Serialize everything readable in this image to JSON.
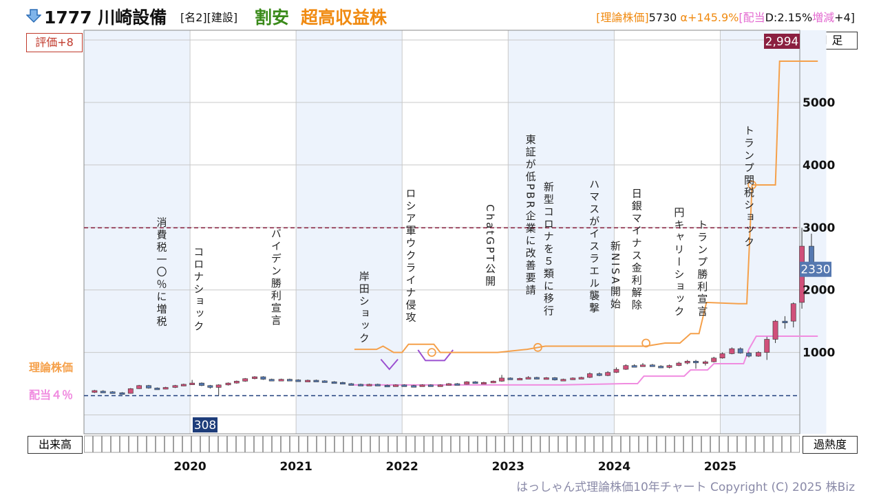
{
  "header": {
    "ticker": "1777 川崎設備",
    "tags": "[名2][建設]",
    "valuation": "割安",
    "growth": "超高収益株",
    "info_prefix": "[理論株価]",
    "theoretical_price": "5730",
    "alpha": "α+145.9%",
    "dividend_prefix": "[配当",
    "dividend": "D:2.15%",
    "change_label": "増減",
    "change_value": "+4]",
    "direction_icon": "down-arrow-icon"
  },
  "labels": {
    "rating": "評価+8",
    "period": "月 足",
    "volume": "出来高",
    "overheat": "過熱度",
    "theory_line": "理論株価",
    "dividend_line": "配当４％"
  },
  "footer": "はっしゃん式理論株価10年チャート Copyright (C) 2025 株Biz",
  "colors": {
    "up_candle": "#d0507a",
    "down_candle": "#5578b0",
    "theory_line": "#f5a04a",
    "dividend_line": "#f08ce0",
    "purple": "#9b4fd0",
    "high_tag": "#8b2040",
    "low_tag": "#1e3d7a",
    "current_tag": "#5578b0",
    "shade": "#edf3fc"
  },
  "chart_data": {
    "type": "candlestick",
    "period": "monthly",
    "ylim": [
      0,
      6000
    ],
    "yticks": [
      1000,
      2000,
      3000,
      4000,
      5000
    ],
    "ytick_labels": [
      "1000",
      "2000",
      "3000",
      "4000",
      "5000"
    ],
    "x_start": 2019.0,
    "x_end": 2025.75,
    "year_labels": [
      "2020",
      "2021",
      "2022",
      "2023",
      "2024",
      "2025"
    ],
    "year_positions": [
      2020,
      2021,
      2022,
      2023,
      2024,
      2025
    ],
    "high_price": 2994,
    "high_label": "2,994",
    "low_price": 308,
    "low_label": "308",
    "current_price": 2330,
    "current_label": "2330",
    "candles": [
      {
        "t": 2019.1,
        "o": 360,
        "c": 390,
        "h": 400,
        "l": 350
      },
      {
        "t": 2019.18,
        "o": 380,
        "c": 370,
        "h": 395,
        "l": 360
      },
      {
        "t": 2019.27,
        "o": 370,
        "c": 355,
        "h": 380,
        "l": 345
      },
      {
        "t": 2019.36,
        "o": 355,
        "c": 345,
        "h": 365,
        "l": 335
      },
      {
        "t": 2019.44,
        "o": 345,
        "c": 420,
        "h": 430,
        "l": 340
      },
      {
        "t": 2019.52,
        "o": 420,
        "c": 470,
        "h": 480,
        "l": 415
      },
      {
        "t": 2019.61,
        "o": 470,
        "c": 430,
        "h": 480,
        "l": 420
      },
      {
        "t": 2019.69,
        "o": 430,
        "c": 420,
        "h": 440,
        "l": 405
      },
      {
        "t": 2019.77,
        "o": 420,
        "c": 440,
        "h": 450,
        "l": 410
      },
      {
        "t": 2019.86,
        "o": 440,
        "c": 470,
        "h": 480,
        "l": 430
      },
      {
        "t": 2019.94,
        "o": 470,
        "c": 490,
        "h": 500,
        "l": 460
      },
      {
        "t": 2020.02,
        "o": 490,
        "c": 510,
        "h": 560,
        "l": 480
      },
      {
        "t": 2020.11,
        "o": 510,
        "c": 470,
        "h": 520,
        "l": 460
      },
      {
        "t": 2020.19,
        "o": 470,
        "c": 440,
        "h": 480,
        "l": 420
      },
      {
        "t": 2020.27,
        "o": 440,
        "c": 480,
        "h": 490,
        "l": 308
      },
      {
        "t": 2020.36,
        "o": 480,
        "c": 510,
        "h": 520,
        "l": 470
      },
      {
        "t": 2020.44,
        "o": 510,
        "c": 540,
        "h": 550,
        "l": 500
      },
      {
        "t": 2020.52,
        "o": 540,
        "c": 580,
        "h": 590,
        "l": 530
      },
      {
        "t": 2020.61,
        "o": 580,
        "c": 610,
        "h": 620,
        "l": 570
      },
      {
        "t": 2020.69,
        "o": 610,
        "c": 570,
        "h": 620,
        "l": 560
      },
      {
        "t": 2020.77,
        "o": 570,
        "c": 560,
        "h": 580,
        "l": 545
      },
      {
        "t": 2020.86,
        "o": 560,
        "c": 570,
        "h": 580,
        "l": 550
      },
      {
        "t": 2020.94,
        "o": 570,
        "c": 560,
        "h": 580,
        "l": 550
      },
      {
        "t": 2021.02,
        "o": 560,
        "c": 540,
        "h": 570,
        "l": 530
      },
      {
        "t": 2021.11,
        "o": 540,
        "c": 555,
        "h": 565,
        "l": 530
      },
      {
        "t": 2021.19,
        "o": 555,
        "c": 545,
        "h": 565,
        "l": 535
      },
      {
        "t": 2021.27,
        "o": 545,
        "c": 530,
        "h": 555,
        "l": 520
      },
      {
        "t": 2021.36,
        "o": 530,
        "c": 520,
        "h": 540,
        "l": 510
      },
      {
        "t": 2021.44,
        "o": 520,
        "c": 500,
        "h": 530,
        "l": 490
      },
      {
        "t": 2021.52,
        "o": 500,
        "c": 490,
        "h": 510,
        "l": 480
      },
      {
        "t": 2021.61,
        "o": 490,
        "c": 480,
        "h": 500,
        "l": 470
      },
      {
        "t": 2021.69,
        "o": 480,
        "c": 490,
        "h": 500,
        "l": 470
      },
      {
        "t": 2021.77,
        "o": 490,
        "c": 475,
        "h": 500,
        "l": 465
      },
      {
        "t": 2021.86,
        "o": 475,
        "c": 470,
        "h": 485,
        "l": 460
      },
      {
        "t": 2021.94,
        "o": 470,
        "c": 480,
        "h": 490,
        "l": 460
      },
      {
        "t": 2022.02,
        "o": 480,
        "c": 470,
        "h": 490,
        "l": 455
      },
      {
        "t": 2022.11,
        "o": 470,
        "c": 465,
        "h": 480,
        "l": 450
      },
      {
        "t": 2022.19,
        "o": 465,
        "c": 480,
        "h": 490,
        "l": 455
      },
      {
        "t": 2022.27,
        "o": 480,
        "c": 470,
        "h": 490,
        "l": 460
      },
      {
        "t": 2022.36,
        "o": 470,
        "c": 480,
        "h": 490,
        "l": 465
      },
      {
        "t": 2022.44,
        "o": 480,
        "c": 500,
        "h": 510,
        "l": 470
      },
      {
        "t": 2022.52,
        "o": 500,
        "c": 490,
        "h": 510,
        "l": 480
      },
      {
        "t": 2022.61,
        "o": 490,
        "c": 530,
        "h": 540,
        "l": 485
      },
      {
        "t": 2022.69,
        "o": 530,
        "c": 510,
        "h": 540,
        "l": 500
      },
      {
        "t": 2022.77,
        "o": 510,
        "c": 520,
        "h": 530,
        "l": 500
      },
      {
        "t": 2022.86,
        "o": 520,
        "c": 540,
        "h": 550,
        "l": 510
      },
      {
        "t": 2022.94,
        "o": 540,
        "c": 590,
        "h": 640,
        "l": 530
      },
      {
        "t": 2023.02,
        "o": 590,
        "c": 575,
        "h": 600,
        "l": 565
      },
      {
        "t": 2023.11,
        "o": 575,
        "c": 585,
        "h": 595,
        "l": 565
      },
      {
        "t": 2023.19,
        "o": 585,
        "c": 600,
        "h": 620,
        "l": 575
      },
      {
        "t": 2023.27,
        "o": 600,
        "c": 580,
        "h": 610,
        "l": 570
      },
      {
        "t": 2023.36,
        "o": 580,
        "c": 595,
        "h": 605,
        "l": 570
      },
      {
        "t": 2023.44,
        "o": 595,
        "c": 560,
        "h": 605,
        "l": 550
      },
      {
        "t": 2023.52,
        "o": 560,
        "c": 570,
        "h": 580,
        "l": 550
      },
      {
        "t": 2023.61,
        "o": 570,
        "c": 590,
        "h": 600,
        "l": 560
      },
      {
        "t": 2023.69,
        "o": 590,
        "c": 600,
        "h": 610,
        "l": 580
      },
      {
        "t": 2023.77,
        "o": 600,
        "c": 660,
        "h": 680,
        "l": 590
      },
      {
        "t": 2023.86,
        "o": 660,
        "c": 630,
        "h": 680,
        "l": 620
      },
      {
        "t": 2023.94,
        "o": 630,
        "c": 680,
        "h": 700,
        "l": 620
      },
      {
        "t": 2024.02,
        "o": 680,
        "c": 730,
        "h": 760,
        "l": 670
      },
      {
        "t": 2024.11,
        "o": 730,
        "c": 790,
        "h": 810,
        "l": 720
      },
      {
        "t": 2024.19,
        "o": 790,
        "c": 780,
        "h": 810,
        "l": 760
      },
      {
        "t": 2024.27,
        "o": 780,
        "c": 800,
        "h": 830,
        "l": 770
      },
      {
        "t": 2024.36,
        "o": 800,
        "c": 780,
        "h": 815,
        "l": 770
      },
      {
        "t": 2024.44,
        "o": 780,
        "c": 760,
        "h": 795,
        "l": 750
      },
      {
        "t": 2024.52,
        "o": 760,
        "c": 790,
        "h": 805,
        "l": 745
      },
      {
        "t": 2024.61,
        "o": 790,
        "c": 830,
        "h": 850,
        "l": 780
      },
      {
        "t": 2024.69,
        "o": 830,
        "c": 860,
        "h": 880,
        "l": 810
      },
      {
        "t": 2024.77,
        "o": 860,
        "c": 840,
        "h": 880,
        "l": 740
      },
      {
        "t": 2024.86,
        "o": 840,
        "c": 850,
        "h": 870,
        "l": 790
      },
      {
        "t": 2024.94,
        "o": 850,
        "c": 910,
        "h": 930,
        "l": 840
      },
      {
        "t": 2025.02,
        "o": 910,
        "c": 980,
        "h": 1000,
        "l": 900
      },
      {
        "t": 2025.11,
        "o": 980,
        "c": 1060,
        "h": 1080,
        "l": 970
      },
      {
        "t": 2025.19,
        "o": 1060,
        "c": 990,
        "h": 1080,
        "l": 980
      },
      {
        "t": 2025.27,
        "o": 990,
        "c": 940,
        "h": 1010,
        "l": 920
      },
      {
        "t": 2025.36,
        "o": 940,
        "c": 1000,
        "h": 1020,
        "l": 930
      },
      {
        "t": 2025.44,
        "o": 1000,
        "c": 1210,
        "h": 1250,
        "l": 880
      },
      {
        "t": 2025.52,
        "o": 1210,
        "c": 1500,
        "h": 1520,
        "l": 1150
      },
      {
        "t": 2025.61,
        "o": 1500,
        "c": 1490,
        "h": 1580,
        "l": 1380
      },
      {
        "t": 2025.69,
        "o": 1500,
        "c": 1780,
        "h": 1800,
        "l": 1400
      },
      {
        "t": 2025.77,
        "o": 1800,
        "c": 2700,
        "h": 2994,
        "l": 1700
      },
      {
        "t": 2025.86,
        "o": 2700,
        "c": 2330,
        "h": 2900,
        "l": 2280
      }
    ],
    "theoretical_line": [
      [
        2021.55,
        1050
      ],
      [
        2021.76,
        1050
      ],
      [
        2021.82,
        1100
      ],
      [
        2021.92,
        1000
      ],
      [
        2022.0,
        1000
      ],
      [
        2022.06,
        1130
      ],
      [
        2022.3,
        1130
      ],
      [
        2022.36,
        1000
      ],
      [
        2022.9,
        1000
      ],
      [
        2023.18,
        1050
      ],
      [
        2023.35,
        1100
      ],
      [
        2024.3,
        1100
      ],
      [
        2024.48,
        1150
      ],
      [
        2024.62,
        1150
      ],
      [
        2024.72,
        1300
      ],
      [
        2024.8,
        1300
      ],
      [
        2024.87,
        1800
      ],
      [
        2025.17,
        1780
      ],
      [
        2025.25,
        1780
      ],
      [
        2025.3,
        3680
      ],
      [
        2025.52,
        3680
      ],
      [
        2025.56,
        5660
      ],
      [
        2025.92,
        5660
      ]
    ],
    "theory_markers": [
      [
        2022.28,
        1000
      ],
      [
        2023.28,
        1080
      ],
      [
        2024.3,
        1150
      ],
      [
        2025.3,
        3680
      ]
    ],
    "dividend_line": [
      [
        2021.5,
        480
      ],
      [
        2023.5,
        480
      ],
      [
        2024.1,
        500
      ],
      [
        2024.22,
        500
      ],
      [
        2024.28,
        620
      ],
      [
        2024.66,
        620
      ],
      [
        2024.72,
        720
      ],
      [
        2024.88,
        720
      ],
      [
        2024.94,
        820
      ],
      [
        2025.22,
        820
      ],
      [
        2025.27,
        1050
      ],
      [
        2025.34,
        1260
      ],
      [
        2025.92,
        1260
      ]
    ],
    "purple_segments": [
      [
        [
          2021.8,
          890
        ],
        [
          2021.88,
          730
        ],
        [
          2021.96,
          890
        ]
      ],
      [
        [
          2022.15,
          1040
        ],
        [
          2022.22,
          870
        ],
        [
          2022.4,
          870
        ],
        [
          2022.48,
          1040
        ]
      ]
    ],
    "events": [
      {
        "t": 2019.73,
        "y": 3170,
        "text": "消費税一〇％に増税"
      },
      {
        "t": 2020.08,
        "y": 2695,
        "text": "コロナショック"
      },
      {
        "t": 2020.81,
        "y": 2990,
        "text": "バイデン勝利宣言"
      },
      {
        "t": 2021.64,
        "y": 2305,
        "text": "岸田ショック"
      },
      {
        "t": 2022.08,
        "y": 3635,
        "text": "ロシア軍ウクライナ侵攻"
      },
      {
        "t": 2022.83,
        "y": 3370,
        "text": "ChatGPT公開"
      },
      {
        "t": 2023.21,
        "y": 4495,
        "text": "東証が低PBR企業に改善要請"
      },
      {
        "t": 2023.38,
        "y": 3735,
        "text": "新型コロナを５類に移行"
      },
      {
        "t": 2023.81,
        "y": 3780,
        "text": "ハマスがイスラエル襲撃"
      },
      {
        "t": 2024.01,
        "y": 2790,
        "text": "新NISA開始"
      },
      {
        "t": 2024.21,
        "y": 3635,
        "text": "日銀マイナス金利解除"
      },
      {
        "t": 2024.61,
        "y": 3330,
        "text": "円キャリーショック"
      },
      {
        "t": 2024.83,
        "y": 3130,
        "text": "トランプ勝利宣言"
      },
      {
        "t": 2025.27,
        "y": 4640,
        "text": "トランプ関税ショック"
      }
    ]
  }
}
